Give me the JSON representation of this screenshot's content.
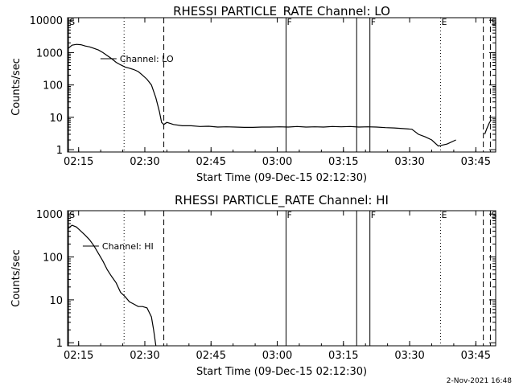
{
  "footer": {
    "generated": "2-Nov-2021 16:48"
  },
  "chart_data": [
    {
      "type": "line",
      "title": "RHESSI PARTICLE_RATE Channel: LO",
      "xlabel": "Start Time (09-Dec-15 02:12:30)",
      "ylabel": "Counts/sec",
      "x_unit": "minutes after 02:12:30",
      "xlim": [
        0,
        97
      ],
      "ylim": [
        0.85,
        12000
      ],
      "yscale": "log",
      "x_ticks": [
        {
          "x": 2.5,
          "label": "02:15"
        },
        {
          "x": 17.5,
          "label": "02:30"
        },
        {
          "x": 32.5,
          "label": "02:45"
        },
        {
          "x": 47.5,
          "label": "03:00"
        },
        {
          "x": 62.5,
          "label": "03:15"
        },
        {
          "x": 77.5,
          "label": "03:30"
        },
        {
          "x": 92.5,
          "label": "03:45"
        }
      ],
      "y_ticks": [
        {
          "y": 1,
          "label": "1"
        },
        {
          "y": 10,
          "label": "10"
        },
        {
          "y": 100,
          "label": "100"
        },
        {
          "y": 1000,
          "label": "1000"
        },
        {
          "y": 10000,
          "label": "10000"
        }
      ],
      "series": [
        {
          "name": "Channel: LO",
          "x": [
            0,
            1,
            2,
            3,
            4,
            5,
            6,
            7,
            8,
            9,
            10,
            11,
            12,
            13,
            14,
            15,
            16,
            17,
            18,
            19,
            20,
            20.8,
            21.3,
            21.8,
            22.5,
            24,
            26,
            28,
            30,
            32,
            34,
            36,
            38,
            40,
            42,
            44,
            46,
            48,
            50,
            52,
            54,
            56,
            58,
            60,
            62,
            64,
            66,
            68,
            70,
            72,
            74,
            76,
            78,
            79.5,
            81,
            82.5,
            84,
            86,
            88
          ],
          "y": [
            1300,
            1700,
            1800,
            1750,
            1600,
            1500,
            1350,
            1200,
            1000,
            800,
            650,
            500,
            420,
            360,
            330,
            300,
            260,
            200,
            150,
            100,
            40,
            15,
            7,
            6,
            7,
            6,
            5.5,
            5.5,
            5.2,
            5.3,
            5,
            5.1,
            5,
            4.9,
            4.9,
            5,
            5,
            5.1,
            5,
            5.2,
            5,
            5.1,
            5,
            5.2,
            5.1,
            5.2,
            5,
            5.1,
            5,
            4.8,
            4.7,
            4.5,
            4.3,
            3,
            2.5,
            2,
            1.3,
            1.5,
            2
          ]
        },
        {
          "name": "",
          "x": [
            94.5,
            95,
            95.5,
            96
          ],
          "y": [
            3,
            4.5,
            6.5,
            8.5
          ]
        }
      ],
      "markers": [
        {
          "x": 0.2,
          "style": "solid",
          "label": "S"
        },
        {
          "x": 12.8,
          "style": "dotted",
          "label": ""
        },
        {
          "x": 21.8,
          "style": "dashed",
          "label": ""
        },
        {
          "x": 49.5,
          "style": "solid",
          "label": "F"
        },
        {
          "x": 65.5,
          "style": "solid",
          "label": ""
        },
        {
          "x": 68.5,
          "style": "solid",
          "label": "F"
        },
        {
          "x": 84.5,
          "style": "dotted",
          "label": "E"
        },
        {
          "x": 94.2,
          "style": "dashed",
          "label": ""
        },
        {
          "x": 95.8,
          "style": "dashed",
          "label": "S"
        }
      ],
      "grid": false,
      "legend": "inline-left"
    },
    {
      "type": "line",
      "title": "RHESSI PARTICLE_RATE Channel: HI",
      "xlabel": "Start Time (09-Dec-15 02:12:30)",
      "ylabel": "Counts/sec",
      "x_unit": "minutes after 02:12:30",
      "xlim": [
        0,
        97
      ],
      "ylim": [
        0.85,
        1200
      ],
      "yscale": "log",
      "x_ticks": [
        {
          "x": 2.5,
          "label": "02:15"
        },
        {
          "x": 17.5,
          "label": "02:30"
        },
        {
          "x": 32.5,
          "label": "02:45"
        },
        {
          "x": 47.5,
          "label": "03:00"
        },
        {
          "x": 62.5,
          "label": "03:15"
        },
        {
          "x": 77.5,
          "label": "03:30"
        },
        {
          "x": 92.5,
          "label": "03:45"
        }
      ],
      "y_ticks": [
        {
          "y": 1,
          "label": "1"
        },
        {
          "y": 10,
          "label": "10"
        },
        {
          "y": 100,
          "label": "100"
        },
        {
          "y": 1000,
          "label": "1000"
        }
      ],
      "series": [
        {
          "name": "Channel: HI",
          "x": [
            0,
            1,
            2,
            3,
            4,
            5,
            6,
            7,
            8,
            9,
            10,
            11,
            12,
            13,
            14,
            15,
            16,
            17,
            18,
            19,
            19.5,
            20
          ],
          "y": [
            450,
            550,
            500,
            400,
            320,
            250,
            180,
            120,
            80,
            50,
            35,
            25,
            15,
            12,
            9,
            8,
            7,
            7,
            6.5,
            4,
            2,
            0.85
          ]
        }
      ],
      "markers": [
        {
          "x": 0.2,
          "style": "solid",
          "label": "S"
        },
        {
          "x": 12.8,
          "style": "dotted",
          "label": ""
        },
        {
          "x": 21.8,
          "style": "dashed",
          "label": ""
        },
        {
          "x": 49.5,
          "style": "solid",
          "label": "F"
        },
        {
          "x": 65.5,
          "style": "solid",
          "label": ""
        },
        {
          "x": 68.5,
          "style": "solid",
          "label": "F"
        },
        {
          "x": 84.5,
          "style": "dotted",
          "label": "E"
        },
        {
          "x": 94.2,
          "style": "dashed",
          "label": ""
        },
        {
          "x": 95.8,
          "style": "dashed",
          "label": "S"
        }
      ],
      "grid": false,
      "legend": "inline-left"
    }
  ]
}
